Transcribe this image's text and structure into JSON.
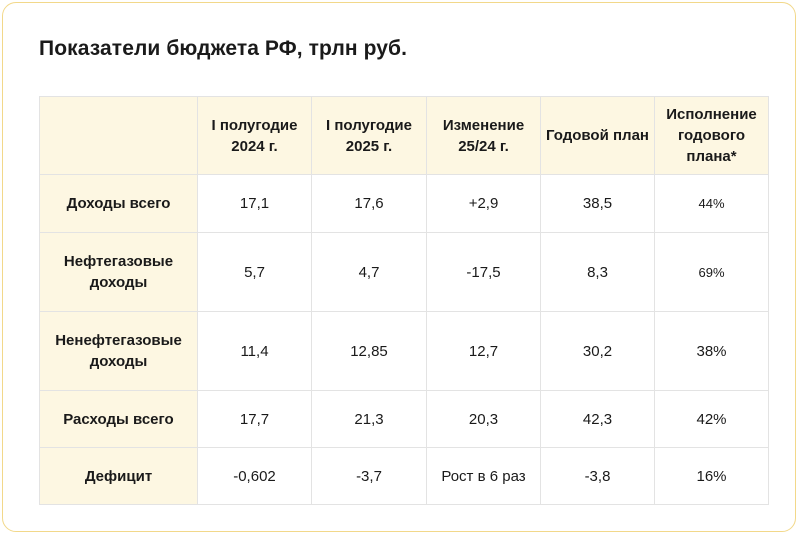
{
  "title": "Показатели бюджета РФ, трлн руб.",
  "columns": [
    "",
    "I полугодие 2024 г.",
    "I полугодие 2025 г.",
    "Изменение 25/24 г.",
    "Годовой план",
    "Исполнение годового плана*"
  ],
  "rows": [
    {
      "label": "Доходы всего",
      "cells": [
        "17,1",
        "17,6",
        "+2,9",
        "38,5",
        "44%"
      ]
    },
    {
      "label": "Нефтегазовые доходы",
      "cells": [
        "5,7",
        "4,7",
        "-17,5",
        "8,3",
        "69%"
      ]
    },
    {
      "label": "Ненефтегазовые доходы",
      "cells": [
        "11,4",
        "12,85",
        "12,7",
        "30,2",
        "38%"
      ]
    },
    {
      "label": "Расходы всего",
      "cells": [
        "17,7",
        "21,3",
        "20,3",
        "42,3",
        "42%"
      ]
    },
    {
      "label": "Дефицит",
      "cells": [
        "-0,602",
        "-3,7",
        "Рост в 6 раз",
        "-3,8",
        "16%"
      ]
    }
  ],
  "colors": {
    "header_bg": "#fdf7e2",
    "border": "#f2d88a",
    "grid": "#e3e3e3"
  }
}
